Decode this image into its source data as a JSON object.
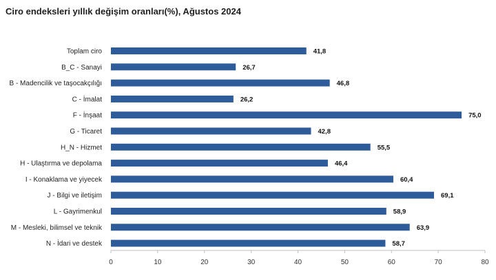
{
  "title": "Ciro endeksleri yıllık değişim oranları(%), Ağustos 2024",
  "colors": {
    "bar": "#2E5C9A",
    "axis": "#bfbfbf"
  },
  "chart_data": {
    "type": "bar",
    "orientation": "horizontal",
    "title": "Ciro endeksleri yıllık değişim oranları(%), Ağustos 2024",
    "xlabel": "",
    "ylabel": "",
    "xlim": [
      0,
      80
    ],
    "ticks": [
      0,
      10,
      20,
      30,
      40,
      50,
      60,
      70,
      80
    ],
    "grid": false,
    "categories": [
      "Toplam ciro",
      "B_C - Sanayi",
      "B - Madencilik ve taşocakçılığı",
      "C - İmalat",
      "F - İnşaat",
      "G - Ticaret",
      "H_N - Hizmet",
      "H - Ulaştırma ve depolama",
      "I - Konaklama ve yiyecek",
      "J - Bilgi ve iletişim",
      "L - Gayrimenkul",
      "M - Mesleki, bilimsel ve teknik",
      "N - İdari ve destek"
    ],
    "values": [
      41.8,
      26.7,
      46.8,
      26.2,
      75.0,
      42.8,
      55.5,
      46.4,
      60.4,
      69.1,
      58.9,
      63.9,
      58.7
    ],
    "value_labels": [
      "41,8",
      "26,7",
      "46,8",
      "26,2",
      "75,0",
      "42,8",
      "55,5",
      "46,4",
      "60,4",
      "69,1",
      "58,9",
      "63,9",
      "58,7"
    ]
  }
}
